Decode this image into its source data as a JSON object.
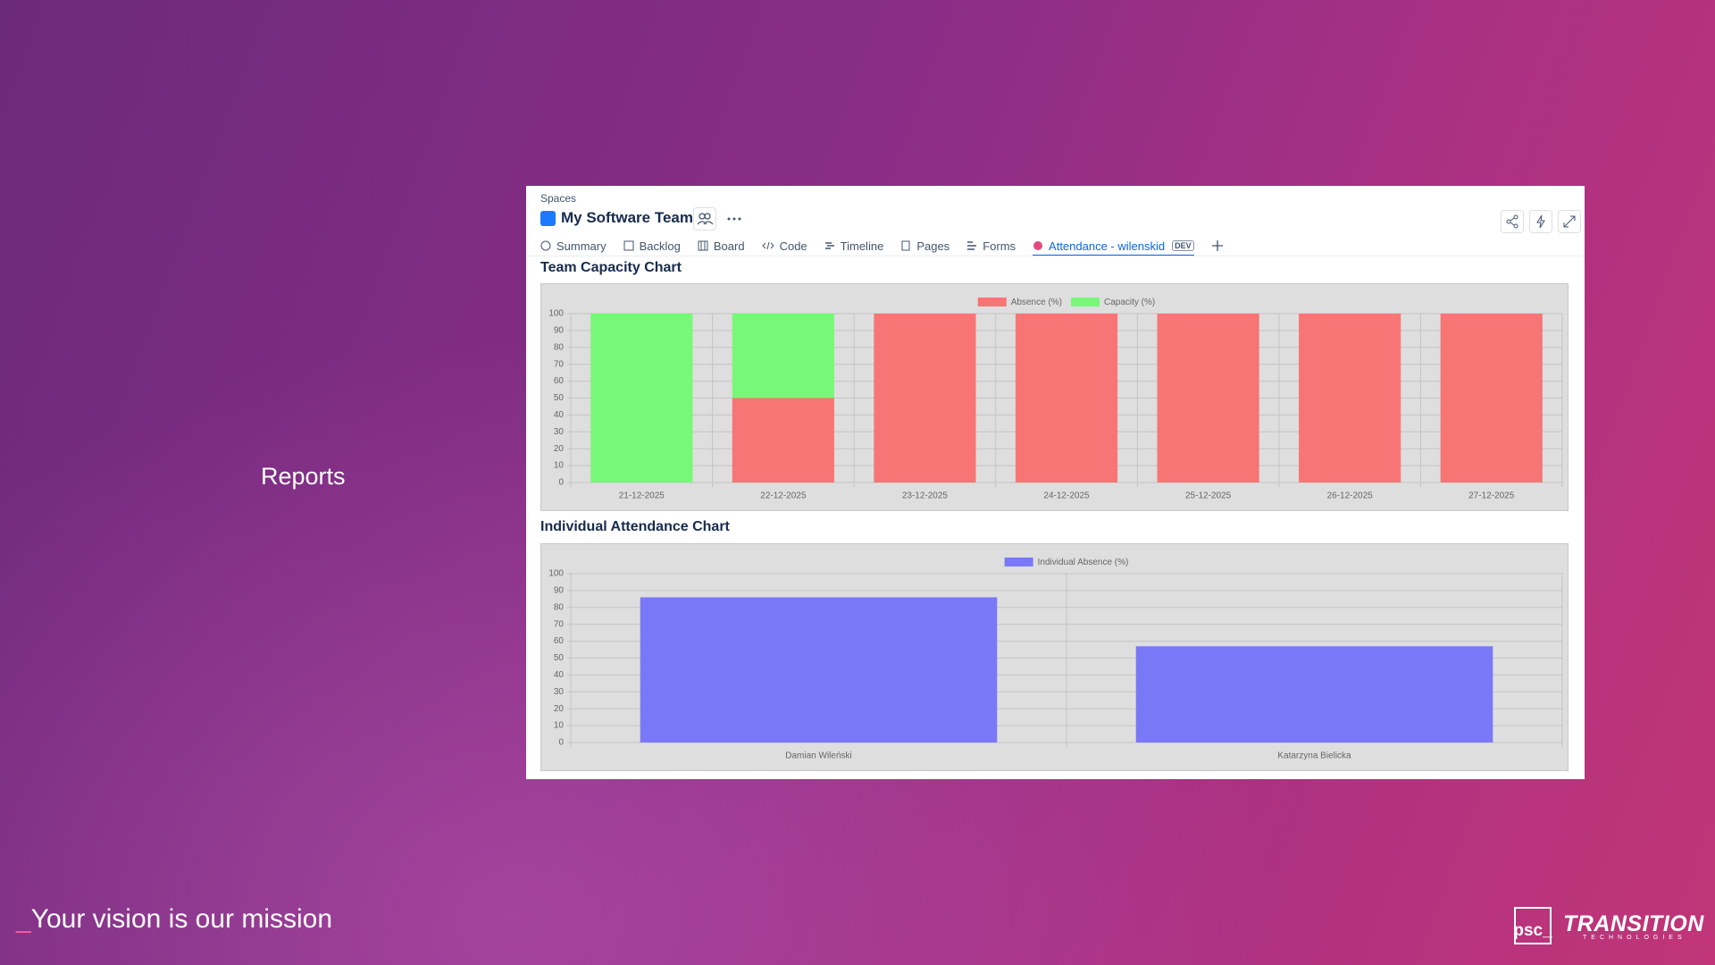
{
  "slide": {
    "heading": "Reports",
    "tagline_mark": "_",
    "tagline": "Your vision is our mission",
    "logo": "psc_",
    "brand": "TRANSITION",
    "brand_sub": "TECHNOLOGIES"
  },
  "app": {
    "breadcrumb": "Spaces",
    "space_title": "My Software Team",
    "tabs": [
      "Summary",
      "Backlog",
      "Board",
      "Code",
      "Timeline",
      "Pages",
      "Forms",
      "Attendance - wilenskid"
    ],
    "badge": "DEV"
  },
  "chart_data": [
    {
      "type": "bar",
      "stacked": true,
      "title": "Team Capacity Chart",
      "categories": [
        "21-12-2025",
        "22-12-2025",
        "23-12-2025",
        "24-12-2025",
        "25-12-2025",
        "26-12-2025",
        "27-12-2025"
      ],
      "series": [
        {
          "name": "Absence (%)",
          "color": "#f87575",
          "values": [
            0,
            50,
            100,
            100,
            100,
            100,
            100
          ]
        },
        {
          "name": "Capacity (%)",
          "color": "#78f878",
          "values": [
            100,
            50,
            0,
            0,
            0,
            0,
            0
          ]
        }
      ],
      "ylim": [
        0,
        100
      ],
      "yticks": [
        0,
        10,
        20,
        30,
        40,
        50,
        60,
        70,
        80,
        90,
        100
      ],
      "grid": true,
      "legend": "top"
    },
    {
      "type": "bar",
      "stacked": false,
      "title": "Individual Attendance Chart",
      "categories": [
        "Damian Wileński",
        "Katarzyna Bielicka"
      ],
      "series": [
        {
          "name": "Individual Absence (%)",
          "color": "#7979f8",
          "values": [
            86,
            57
          ]
        }
      ],
      "ylim": [
        0,
        100
      ],
      "yticks": [
        0,
        10,
        20,
        30,
        40,
        50,
        60,
        70,
        80,
        90,
        100
      ],
      "grid": true,
      "legend": "top"
    }
  ]
}
